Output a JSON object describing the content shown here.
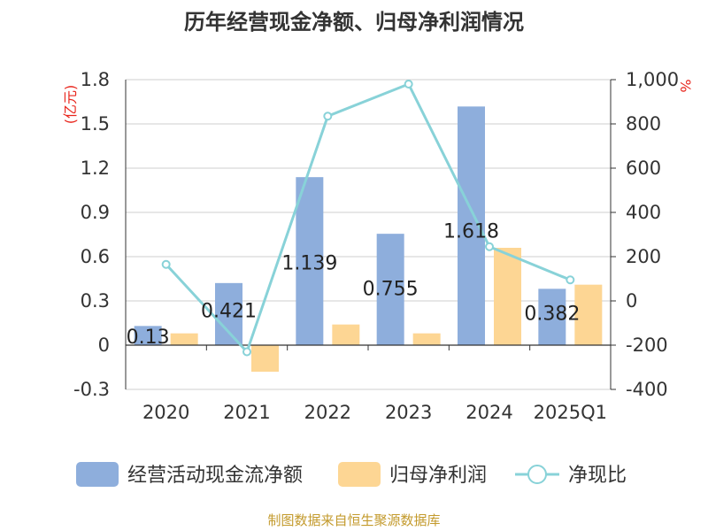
{
  "chart_data": {
    "type": "bar",
    "title": "历年经营现金净额、归母净利润情况",
    "categories": [
      "2020",
      "2021",
      "2022",
      "2023",
      "2024",
      "2025Q1"
    ],
    "series": [
      {
        "name": "经营活动现金流净额",
        "type": "bar",
        "axis": "left",
        "color": "#8eaedc",
        "values": [
          0.13,
          0.421,
          1.139,
          0.755,
          1.618,
          0.382
        ],
        "labels": [
          "0.13",
          "0.421",
          "1.139",
          "0.755",
          "1.618",
          "0.382"
        ]
      },
      {
        "name": "归母净利润",
        "type": "bar",
        "axis": "left",
        "color": "#fdd694",
        "values": [
          0.08,
          -0.18,
          0.14,
          0.08,
          0.66,
          0.41
        ]
      },
      {
        "name": "净现比",
        "type": "line",
        "axis": "right",
        "color": "#88d2d8",
        "values": [
          165,
          -230,
          835,
          980,
          245,
          95
        ]
      }
    ],
    "y_left": {
      "unit": "(亿元)",
      "ylim": [
        -0.3,
        1.8
      ],
      "ticks": [
        "-0.3",
        "0",
        "0.3",
        "0.6",
        "0.9",
        "1.2",
        "1.5",
        "1.8"
      ]
    },
    "y_right": {
      "unit": "%",
      "ylim": [
        -400,
        1000
      ],
      "ticks": [
        "-400",
        "-200",
        "0",
        "200",
        "400",
        "600",
        "800",
        "1,000"
      ]
    },
    "grid": true,
    "legend_position": "bottom",
    "source": "制图数据来自恒生聚源数据库"
  }
}
